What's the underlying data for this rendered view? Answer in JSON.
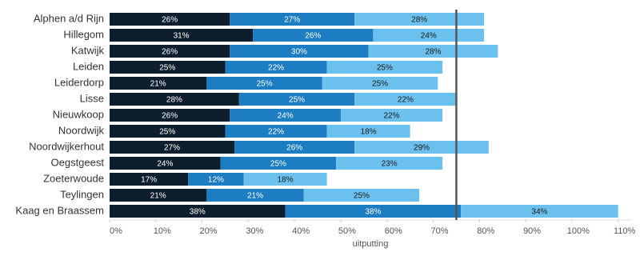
{
  "chart_data": {
    "type": "stacked_bar_horizontal",
    "x_label": "uitputting",
    "categories": [
      "Alphen a/d Rijn",
      "Hillegom",
      "Katwijk",
      "Leiden",
      "Leiderdorp",
      "Lisse",
      "Nieuwkoop",
      "Noordwijk",
      "Noordwijkerhout",
      "Oegstgeest",
      "Zoeterwoude",
      "Teylingen",
      "Kaag en Braassem"
    ],
    "series": [
      {
        "color": "#0e1e2c",
        "label_color": "#ffffff",
        "values": [
          26,
          31,
          26,
          25,
          21,
          28,
          26,
          25,
          27,
          24,
          17,
          21,
          38
        ],
        "value_labels": [
          "26%",
          "31%",
          "26%",
          "25%",
          "21%",
          "28%",
          "26%",
          "25%",
          "27%",
          "24%",
          "17%",
          "21%",
          "38%"
        ]
      },
      {
        "color": "#1c7dc2",
        "label_color": "#ffffff",
        "values": [
          27,
          26,
          30,
          22,
          25,
          25,
          24,
          22,
          26,
          25,
          12,
          21,
          38
        ],
        "value_labels": [
          "27%",
          "26%",
          "30%",
          "22%",
          "25%",
          "25%",
          "24%",
          "22%",
          "26%",
          "25%",
          "12%",
          "21%",
          "38%"
        ]
      },
      {
        "color": "#6cc0ee",
        "label_color": "#1a1a1a",
        "values": [
          28,
          24,
          28,
          25,
          25,
          22,
          22,
          18,
          29,
          23,
          18,
          25,
          34
        ],
        "value_labels": [
          "28%",
          "24%",
          "28%",
          "25%",
          "25%",
          "22%",
          "22%",
          "18%",
          "29%",
          "23%",
          "18%",
          "25%",
          "34%"
        ]
      }
    ],
    "xlim": [
      0,
      113
    ],
    "xticks": [
      {
        "value": 0,
        "label": "0%"
      },
      {
        "value": 10,
        "label": "10%"
      },
      {
        "value": 20,
        "label": "20%"
      },
      {
        "value": 30,
        "label": "30%"
      },
      {
        "value": 40,
        "label": "40%"
      },
      {
        "value": 50,
        "label": "50%"
      },
      {
        "value": 60,
        "label": "60%"
      },
      {
        "value": 70,
        "label": "70%"
      },
      {
        "value": 80,
        "label": "80%"
      },
      {
        "value": 90,
        "label": "90%"
      },
      {
        "value": 100,
        "label": "100%"
      },
      {
        "value": 110,
        "label": "110%"
      }
    ],
    "reference_line": 75,
    "reference_color": "#555555"
  }
}
